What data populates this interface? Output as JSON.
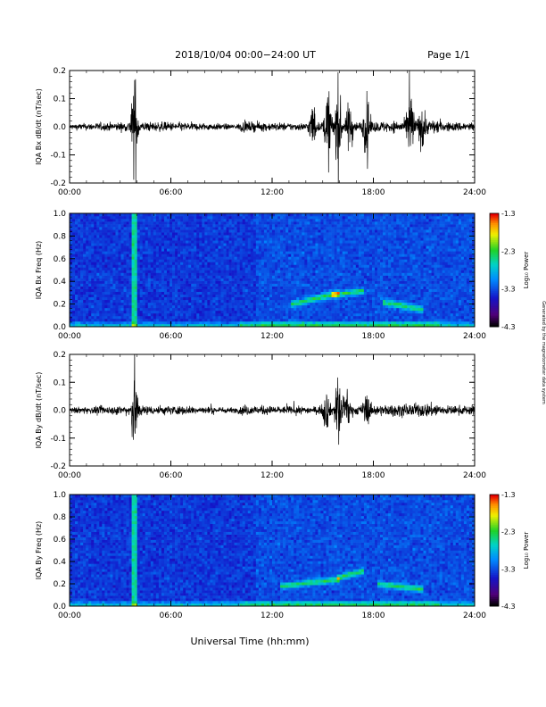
{
  "header": {
    "date_range": "2018/10/04  00:00−24:00 UT",
    "page": "Page 1/1"
  },
  "footer": {
    "xlabel": "Universal Time (hh:mm)",
    "side_note": "Generated by the magnetometer data system"
  },
  "chart_data": [
    {
      "type": "line",
      "ylabel": "IQA Bx dB/dt (nT/sec)",
      "xlim": [
        0,
        24
      ],
      "ylim": [
        -0.2,
        0.2
      ],
      "x_ticks": [
        "00:00",
        "06:00",
        "12:00",
        "18:00",
        "24:00"
      ],
      "y_ticks": [
        "-0.2",
        "-0.1",
        "0.0",
        "0.1",
        "0.2"
      ],
      "events": [
        {
          "t": 3.85,
          "amp": 0.2
        },
        {
          "t": 14.4,
          "amp": 0.09
        },
        {
          "t": 15.3,
          "amp": 0.16
        },
        {
          "t": 15.9,
          "amp": 0.2
        },
        {
          "t": 16.6,
          "amp": 0.12
        },
        {
          "t": 17.6,
          "amp": 0.12
        },
        {
          "t": 20.2,
          "amp": 0.15
        },
        {
          "t": 20.9,
          "amp": 0.08
        }
      ],
      "color": "#000000"
    },
    {
      "type": "heatmap",
      "ylabel": "IQA Bx Freq (Hz)",
      "xlim": [
        0,
        24
      ],
      "ylim": [
        0,
        1.0
      ],
      "x_ticks": [
        "00:00",
        "06:00",
        "12:00",
        "18:00",
        "24:00"
      ],
      "y_ticks": [
        "0.0",
        "0.2",
        "0.4",
        "0.6",
        "0.8",
        "1.0"
      ],
      "colorbar": {
        "label": "Log₁₀ Power",
        "ticks": [
          "-1.3",
          "-2.3",
          "-3.3",
          "-4.3"
        ],
        "range": [
          -4.3,
          -1.3
        ]
      },
      "features": [
        {
          "t0": 13.2,
          "t1": 16.0,
          "f0": 0.2,
          "f1": 0.3
        },
        {
          "t0": 15.5,
          "t1": 17.5,
          "f0": 0.28,
          "f1": 0.32
        },
        {
          "t0": 18.5,
          "t1": 21.0,
          "f0": 0.22,
          "f1": 0.15
        }
      ]
    },
    {
      "type": "line",
      "ylabel": "IQA By dB/dt (nT/sec)",
      "xlim": [
        0,
        24
      ],
      "ylim": [
        -0.2,
        0.2
      ],
      "x_ticks": [
        "00:00",
        "06:00",
        "12:00",
        "18:00",
        "24:00"
      ],
      "y_ticks": [
        "-0.2",
        "-0.1",
        "0.0",
        "0.1",
        "0.2"
      ],
      "events": [
        {
          "t": 3.85,
          "amp": 0.19
        },
        {
          "t": 15.2,
          "amp": 0.08
        },
        {
          "t": 15.9,
          "amp": 0.14
        },
        {
          "t": 16.4,
          "amp": 0.1
        },
        {
          "t": 17.6,
          "amp": 0.06
        }
      ],
      "color": "#000000"
    },
    {
      "type": "heatmap",
      "ylabel": "IQA By Freq (Hz)",
      "xlim": [
        0,
        24
      ],
      "ylim": [
        0,
        1.0
      ],
      "x_ticks": [
        "00:00",
        "06:00",
        "12:00",
        "18:00",
        "24:00"
      ],
      "y_ticks": [
        "0.0",
        "0.2",
        "0.4",
        "0.6",
        "0.8",
        "1.0"
      ],
      "colorbar": {
        "label": "Log₁₀ Power",
        "ticks": [
          "-1.3",
          "-2.3",
          "-3.3",
          "-4.3"
        ],
        "range": [
          -4.3,
          -1.3
        ]
      },
      "features": [
        {
          "t0": 12.5,
          "t1": 16.0,
          "f0": 0.18,
          "f1": 0.24
        },
        {
          "t0": 15.8,
          "t1": 17.5,
          "f0": 0.25,
          "f1": 0.32
        },
        {
          "t0": 18.3,
          "t1": 21.0,
          "f0": 0.2,
          "f1": 0.15
        }
      ]
    }
  ]
}
